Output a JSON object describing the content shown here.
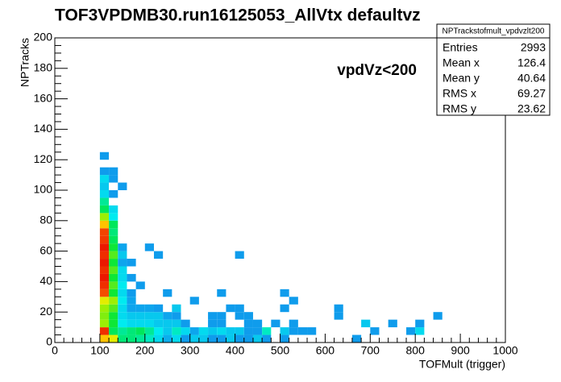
{
  "chart_data": {
    "type": "heatmap",
    "title": "TOF3VPDMB30.run16125053_AllVtx defaultvz",
    "annotation": "vpdVz<200",
    "x_label": "TOFMult (trigger)",
    "y_label": "NPTracks",
    "xlim": [
      0,
      1000
    ],
    "ylim": [
      0,
      200
    ],
    "xticks": [
      0,
      100,
      200,
      300,
      400,
      500,
      600,
      700,
      800,
      900,
      1000
    ],
    "yticks": [
      0,
      20,
      40,
      60,
      80,
      100,
      120,
      140,
      160,
      180,
      200
    ],
    "stats": {
      "title": "NPTrackstofmult_vpdvzlt200",
      "rows": [
        {
          "label": "Entries",
          "value": 2993
        },
        {
          "label": "Mean x",
          "value": 126.4
        },
        {
          "label": "Mean y",
          "value": 40.64
        },
        {
          "label": "RMS x",
          "value": 69.27
        },
        {
          "label": "RMS y",
          "value": 23.62
        }
      ]
    },
    "cells": {
      "x": [
        100,
        100,
        100,
        100,
        100,
        100,
        100,
        100,
        100,
        100,
        100,
        100,
        100,
        100,
        100,
        100,
        100,
        100,
        100,
        100,
        100,
        100,
        100,
        100,
        120,
        120,
        120,
        120,
        120,
        120,
        120,
        120,
        120,
        120,
        120,
        120,
        120,
        120,
        120,
        120,
        120,
        120,
        120,
        120,
        120,
        140,
        140,
        140,
        140,
        140,
        140,
        140,
        140,
        140,
        140,
        140,
        140,
        140,
        140,
        160,
        160,
        160,
        160,
        160,
        160,
        160,
        160,
        160,
        180,
        180,
        180,
        180,
        180,
        180,
        200,
        200,
        200,
        200,
        200,
        200,
        220,
        220,
        220,
        220,
        220,
        220,
        240,
        240,
        240,
        240,
        240,
        260,
        260,
        260,
        260,
        260,
        280,
        280,
        280,
        300,
        300,
        300,
        320,
        320,
        340,
        340,
        340,
        340,
        360,
        360,
        360,
        360,
        360,
        380,
        380,
        380,
        400,
        400,
        400,
        400,
        400,
        420,
        420,
        420,
        420,
        440,
        440,
        440,
        460,
        460,
        480,
        500,
        500,
        500,
        500,
        520,
        520,
        520,
        540,
        560,
        620,
        620,
        660,
        680,
        700,
        740,
        780,
        800,
        800,
        840
      ],
      "y": [
        0,
        5,
        10,
        15,
        20,
        25,
        30,
        35,
        40,
        45,
        50,
        55,
        60,
        65,
        70,
        75,
        80,
        85,
        90,
        95,
        100,
        105,
        110,
        120,
        0,
        5,
        10,
        15,
        20,
        25,
        30,
        35,
        40,
        45,
        50,
        55,
        60,
        65,
        70,
        75,
        80,
        85,
        95,
        105,
        110,
        0,
        5,
        10,
        15,
        20,
        25,
        30,
        35,
        40,
        45,
        50,
        55,
        60,
        100,
        0,
        5,
        10,
        15,
        20,
        25,
        30,
        40,
        50,
        0,
        5,
        10,
        15,
        20,
        35,
        0,
        5,
        10,
        15,
        20,
        60,
        0,
        5,
        10,
        15,
        20,
        55,
        0,
        5,
        10,
        15,
        30,
        0,
        5,
        10,
        15,
        20,
        0,
        5,
        10,
        0,
        5,
        25,
        0,
        5,
        0,
        5,
        10,
        15,
        0,
        5,
        10,
        15,
        30,
        0,
        5,
        20,
        0,
        5,
        15,
        20,
        55,
        0,
        5,
        10,
        15,
        0,
        5,
        10,
        0,
        5,
        10,
        0,
        5,
        20,
        30,
        5,
        10,
        25,
        5,
        5,
        15,
        20,
        0,
        10,
        5,
        10,
        5,
        5,
        10,
        15
      ],
      "values": [
        45,
        58,
        35,
        33,
        35,
        40,
        55,
        58,
        60,
        58,
        60,
        58,
        60,
        57,
        56,
        45,
        35,
        22,
        18,
        10,
        8,
        10,
        3,
        3,
        40,
        22,
        25,
        25,
        30,
        35,
        25,
        30,
        25,
        30,
        25,
        30,
        25,
        22,
        20,
        22,
        12,
        10,
        3,
        3,
        3,
        20,
        18,
        12,
        10,
        10,
        12,
        10,
        12,
        10,
        10,
        4,
        8,
        4,
        3,
        20,
        20,
        10,
        8,
        4,
        4,
        3,
        3,
        3,
        18,
        22,
        10,
        8,
        4,
        3,
        15,
        18,
        10,
        8,
        4,
        3,
        10,
        12,
        8,
        8,
        3,
        3,
        5,
        8,
        8,
        4,
        3,
        10,
        15,
        8,
        3,
        8,
        3,
        10,
        3,
        8,
        4,
        3,
        8,
        10,
        3,
        8,
        3,
        3,
        3,
        10,
        3,
        3,
        3,
        8,
        8,
        3,
        3,
        8,
        3,
        3,
        3,
        3,
        3,
        3,
        3,
        8,
        3,
        3,
        3,
        15,
        3,
        3,
        8,
        3,
        3,
        3,
        3,
        3,
        3,
        3,
        3,
        3,
        3,
        8,
        3,
        3,
        3,
        10,
        3,
        3
      ]
    }
  }
}
